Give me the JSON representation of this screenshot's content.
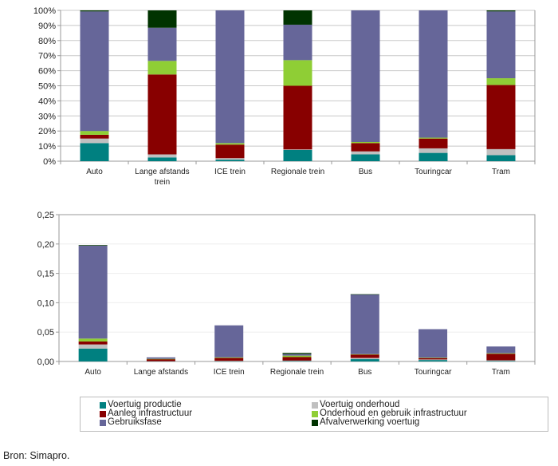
{
  "chart_data": [
    {
      "type": "bar",
      "stacked": true,
      "normalized": true,
      "title": "",
      "xlabel": "",
      "ylabel": "",
      "ylim": [
        0,
        100
      ],
      "yticks": [
        "0%",
        "10%",
        "20%",
        "30%",
        "40%",
        "50%",
        "60%",
        "70%",
        "80%",
        "90%",
        "100%"
      ],
      "grid": true,
      "categories": [
        "Auto",
        "Lange afstands trein",
        "ICE trein",
        "Regionale trein",
        "Bus",
        "Touringcar",
        "Tram"
      ],
      "category_lines": [
        [
          "Auto"
        ],
        [
          "Lange afstands",
          "trein"
        ],
        [
          "ICE trein"
        ],
        [
          "Regionale trein"
        ],
        [
          "Bus"
        ],
        [
          "Touringcar"
        ],
        [
          "Tram"
        ]
      ],
      "series": [
        {
          "name": "Voertuig productie",
          "color": "#008080",
          "values": [
            12,
            2.5,
            1,
            7.5,
            4.5,
            5.5,
            4
          ]
        },
        {
          "name": "Voertuig onderhoud",
          "color": "#c0c0c0",
          "values": [
            3,
            2,
            1,
            0.3,
            2,
            3,
            4
          ]
        },
        {
          "name": "Aanleg infrastructuur",
          "color": "#880000",
          "values": [
            2.5,
            53,
            9,
            42.2,
            5.5,
            6.5,
            42.5
          ]
        },
        {
          "name": "Onderhoud en gebruik infrastructuur",
          "color": "#8fce35",
          "values": [
            2.5,
            9,
            1,
            17,
            0.7,
            0.6,
            4.5
          ]
        },
        {
          "name": "Gebruiksfase",
          "color": "#666699",
          "values": [
            79.3,
            22,
            88,
            23.5,
            87.3,
            84.4,
            44.3
          ]
        },
        {
          "name": "Afvalverwerking voertuig",
          "color": "#003300",
          "values": [
            0.7,
            11.5,
            0,
            9.5,
            0,
            0,
            0.7
          ]
        }
      ]
    },
    {
      "type": "bar",
      "stacked": true,
      "title": "",
      "xlabel": "",
      "ylabel": "",
      "ylim": [
        0,
        0.25
      ],
      "yticks": [
        "0,00",
        "0,05",
        "0,10",
        "0,15",
        "0,20",
        "0,25"
      ],
      "grid": true,
      "categories": [
        "Auto",
        "Lange afstands trein",
        "ICE trein",
        "Regionale trein",
        "Bus",
        "Touringcar",
        "Tram"
      ],
      "category_lines": [
        [
          "Auto"
        ],
        [
          "Lange afstands"
        ],
        [
          "ICE trein"
        ],
        [
          "Regionale trein"
        ],
        [
          "Bus"
        ],
        [
          "Touringcar"
        ],
        [
          "Tram"
        ]
      ],
      "series": [
        {
          "name": "Voertuig productie",
          "color": "#008080",
          "values": [
            0.022,
            0.0002,
            0.0005,
            0.001,
            0.004,
            0.0025,
            0.001
          ]
        },
        {
          "name": "Voertuig onderhoud",
          "color": "#c0c0c0",
          "values": [
            0.007,
            0.0002,
            0.0005,
            0.0005,
            0.002,
            0.001,
            0.001
          ]
        },
        {
          "name": "Aanleg infrastructuur",
          "color": "#880000",
          "values": [
            0.005,
            0.0036,
            0.005,
            0.006,
            0.006,
            0.0025,
            0.011
          ]
        },
        {
          "name": "Onderhoud en gebruik infrastructuur",
          "color": "#8fce35",
          "values": [
            0.005,
            0.0005,
            0.001,
            0.0025,
            0.0005,
            0.0005,
            0.001
          ]
        },
        {
          "name": "Gebruiksfase",
          "color": "#666699",
          "values": [
            0.158,
            0.0025,
            0.0545,
            0.0025,
            0.1015,
            0.0485,
            0.0115
          ]
        },
        {
          "name": "Afvalverwerking voertuig",
          "color": "#003300",
          "values": [
            0.001,
            0.0,
            0.0,
            0.002,
            0.0005,
            0.0,
            0.0
          ]
        }
      ]
    }
  ],
  "legend": {
    "items": [
      {
        "label": "Voertuig productie",
        "color": "#008080"
      },
      {
        "label": "Voertuig onderhoud",
        "color": "#c0c0c0"
      },
      {
        "label": "Aanleg infrastructuur",
        "color": "#880000"
      },
      {
        "label": "Onderhoud en gebruik infrastructuur",
        "color": "#8fce35"
      },
      {
        "label": "Gebruiksfase",
        "color": "#666699"
      },
      {
        "label": "Afvalverwerking voertuig",
        "color": "#003300"
      }
    ],
    "placement": "bottom"
  },
  "source": "Bron: Simapro."
}
